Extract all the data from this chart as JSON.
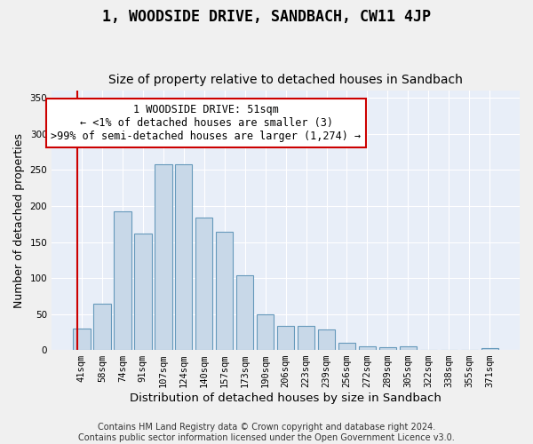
{
  "title": "1, WOODSIDE DRIVE, SANDBACH, CW11 4JP",
  "subtitle": "Size of property relative to detached houses in Sandbach",
  "xlabel": "Distribution of detached houses by size in Sandbach",
  "ylabel": "Number of detached properties",
  "bar_labels": [
    "41sqm",
    "58sqm",
    "74sqm",
    "91sqm",
    "107sqm",
    "124sqm",
    "140sqm",
    "157sqm",
    "173sqm",
    "190sqm",
    "206sqm",
    "223sqm",
    "239sqm",
    "256sqm",
    "272sqm",
    "289sqm",
    "305sqm",
    "322sqm",
    "338sqm",
    "355sqm",
    "371sqm"
  ],
  "bar_values": [
    30,
    64,
    193,
    162,
    258,
    258,
    184,
    164,
    104,
    50,
    33,
    33,
    29,
    10,
    5,
    4,
    5,
    0,
    0,
    0,
    3
  ],
  "bar_color": "#c8d8e8",
  "bar_edge_color": "#6699bb",
  "annotation_line1": "1 WOODSIDE DRIVE: 51sqm",
  "annotation_line2": "← <1% of detached houses are smaller (3)",
  "annotation_line3": ">99% of semi-detached houses are larger (1,274) →",
  "annotation_box_color": "#ffffff",
  "annotation_box_edge_color": "#cc0000",
  "vline_color": "#cc0000",
  "background_color": "#e8eef8",
  "grid_color": "#ffffff",
  "fig_background_color": "#f0f0f0",
  "footer_text": "Contains HM Land Registry data © Crown copyright and database right 2024.\nContains public sector information licensed under the Open Government Licence v3.0.",
  "ylim": [
    0,
    360
  ],
  "title_fontsize": 12,
  "subtitle_fontsize": 10,
  "xlabel_fontsize": 9.5,
  "ylabel_fontsize": 9,
  "tick_fontsize": 7.5,
  "annotation_fontsize": 8.5,
  "footer_fontsize": 7
}
